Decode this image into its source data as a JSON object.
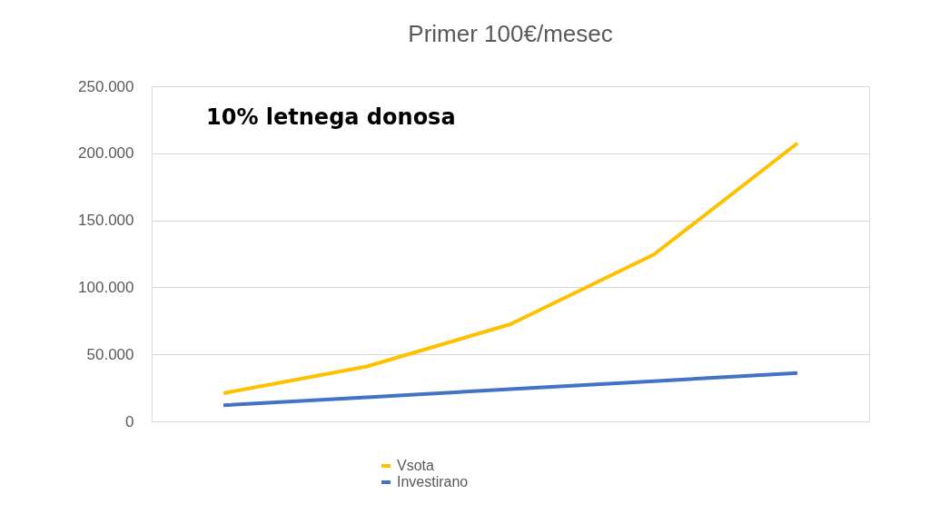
{
  "chart_data": {
    "type": "line",
    "title": "Primer 100€/mesec",
    "categories": [
      null,
      null,
      null,
      null,
      null
    ],
    "series": [
      {
        "name": "Vsota",
        "color": "#ffc000",
        "values": [
          21000,
          41000,
          72500,
          124500,
          207500
        ]
      },
      {
        "name": "Investirano",
        "color": "#4472c4",
        "values": [
          12000,
          18000,
          24000,
          30000,
          36000
        ]
      }
    ],
    "ylim": [
      0,
      250000
    ],
    "yticks": [
      {
        "value": 0,
        "label": "0"
      },
      {
        "value": 50000,
        "label": "50.000"
      },
      {
        "value": 100000,
        "label": "100.000"
      },
      {
        "value": 150000,
        "label": "150.000"
      },
      {
        "value": 200000,
        "label": "200.000"
      },
      {
        "value": 250000,
        "label": "250.000"
      }
    ],
    "grid": "y",
    "legend": "bottom",
    "marker": "none",
    "line_style": "solid",
    "annotations": [
      "10% letnega donosa"
    ]
  }
}
